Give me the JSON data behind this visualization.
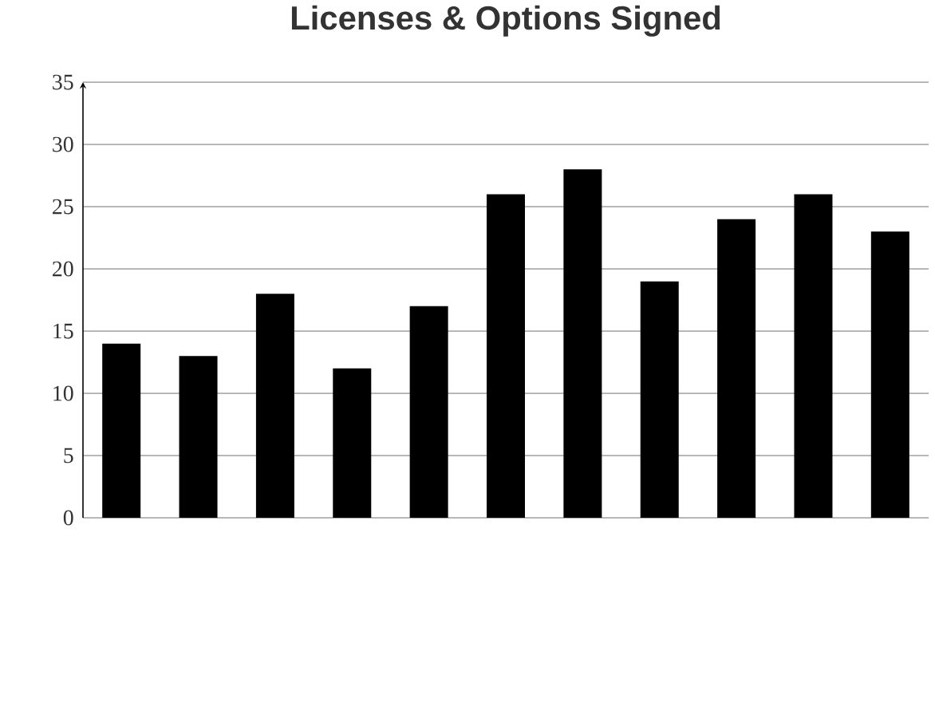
{
  "chart_data": {
    "type": "bar",
    "title": "Licenses & Options Signed",
    "categories": [
      null,
      null,
      null,
      null,
      null,
      null,
      null,
      null,
      null,
      null,
      null
    ],
    "values": [
      14,
      13,
      18,
      12,
      17,
      26,
      28,
      19,
      24,
      26,
      23
    ],
    "color": "#000000",
    "ylim": [
      0,
      35
    ],
    "yticks": [
      0,
      5,
      10,
      15,
      20,
      25,
      30,
      35
    ],
    "grid": "y",
    "tick_labels": "y"
  }
}
